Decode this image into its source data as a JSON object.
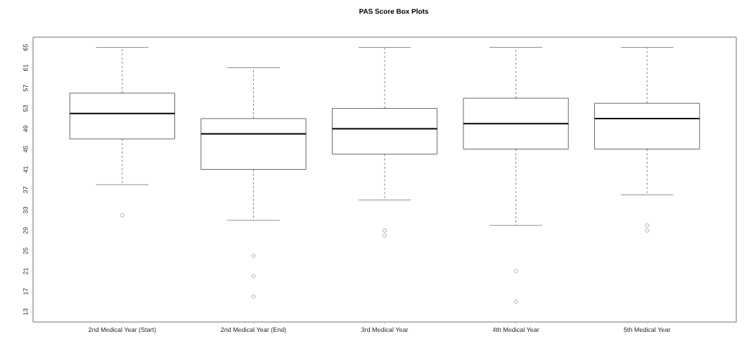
{
  "chart_data": {
    "type": "box",
    "title": "PAS Score Box Plots",
    "categories": [
      "2nd Medical Year (Start)",
      "2nd Medical Year (End)",
      "3rd Medical  Year",
      "4th Medical Year",
      "5th Medical Year"
    ],
    "boxes": [
      {
        "low": 38,
        "q1": 47,
        "median": 52,
        "q3": 56,
        "high": 65,
        "outliers": [
          32
        ]
      },
      {
        "low": 31,
        "q1": 41,
        "median": 48,
        "q3": 51,
        "high": 61,
        "outliers": [
          24,
          20,
          16
        ]
      },
      {
        "low": 35,
        "q1": 44,
        "median": 49,
        "q3": 53,
        "high": 65,
        "outliers": [
          29,
          28
        ]
      },
      {
        "low": 30,
        "q1": 45,
        "median": 50,
        "q3": 55,
        "high": 65,
        "outliers": [
          21,
          15
        ]
      },
      {
        "low": 36,
        "q1": 45,
        "median": 51,
        "q3": 54,
        "high": 65,
        "outliers": [
          30,
          29
        ]
      }
    ],
    "ylim": [
      11,
      67
    ],
    "yticks": [
      13,
      17,
      21,
      25,
      29,
      33,
      37,
      41,
      45,
      49,
      53,
      57,
      61,
      65
    ],
    "grid": false
  }
}
